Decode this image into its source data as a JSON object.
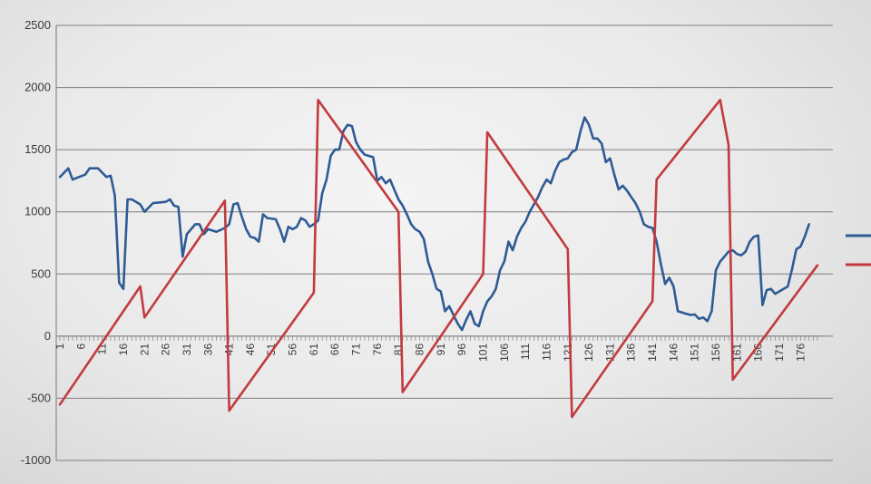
{
  "chart_data": {
    "type": "line",
    "title": "",
    "xlabel": "",
    "ylabel": "",
    "ylim": [
      -1000,
      2500
    ],
    "yticks": [
      "2500",
      "2000",
      "1500",
      "1000",
      "500",
      "0",
      "-500",
      "-1000"
    ],
    "ytick_values": [
      2500,
      2000,
      1500,
      1000,
      500,
      0,
      -500,
      -1000
    ],
    "xtick_labels": [
      "1",
      "6",
      "11",
      "16",
      "21",
      "26",
      "31",
      "36",
      "41",
      "46",
      "51",
      "56",
      "61",
      "66",
      "71",
      "76",
      "81",
      "86",
      "91",
      "96",
      "101",
      "106",
      "111",
      "116",
      "121",
      "126",
      "131",
      "136",
      "141",
      "146",
      "151",
      "156",
      "161",
      "166",
      "171",
      "176"
    ],
    "grid": true,
    "legend_position": "right",
    "x_start": 1,
    "x_end": 180,
    "series": [
      {
        "color": "#2e5b95",
        "points": [
          [
            1,
            1280
          ],
          [
            3,
            1350
          ],
          [
            4,
            1260
          ],
          [
            7,
            1300
          ],
          [
            8,
            1350
          ],
          [
            10,
            1350
          ],
          [
            12,
            1280
          ],
          [
            13,
            1290
          ],
          [
            14,
            1130
          ],
          [
            15,
            430
          ],
          [
            16,
            380
          ],
          [
            17,
            1100
          ],
          [
            18,
            1100
          ],
          [
            20,
            1060
          ],
          [
            21,
            1000
          ],
          [
            23,
            1070
          ],
          [
            26,
            1080
          ],
          [
            27,
            1100
          ],
          [
            28,
            1050
          ],
          [
            29,
            1040
          ],
          [
            30,
            640
          ],
          [
            31,
            820
          ],
          [
            33,
            900
          ],
          [
            34,
            900
          ],
          [
            35,
            820
          ],
          [
            36,
            860
          ],
          [
            38,
            840
          ],
          [
            40,
            870
          ],
          [
            41,
            900
          ],
          [
            42,
            1060
          ],
          [
            43,
            1070
          ],
          [
            44,
            960
          ],
          [
            45,
            860
          ],
          [
            46,
            800
          ],
          [
            47,
            790
          ],
          [
            48,
            760
          ],
          [
            49,
            980
          ],
          [
            50,
            950
          ],
          [
            52,
            940
          ],
          [
            53,
            860
          ],
          [
            54,
            760
          ],
          [
            55,
            880
          ],
          [
            56,
            860
          ],
          [
            57,
            880
          ],
          [
            58,
            950
          ],
          [
            59,
            930
          ],
          [
            60,
            880
          ],
          [
            61,
            900
          ],
          [
            62,
            930
          ],
          [
            63,
            1150
          ],
          [
            64,
            1260
          ],
          [
            65,
            1450
          ],
          [
            66,
            1500
          ],
          [
            67,
            1500
          ],
          [
            68,
            1650
          ],
          [
            69,
            1700
          ],
          [
            70,
            1690
          ],
          [
            71,
            1560
          ],
          [
            72,
            1500
          ],
          [
            73,
            1460
          ],
          [
            75,
            1440
          ],
          [
            76,
            1250
          ],
          [
            77,
            1280
          ],
          [
            78,
            1230
          ],
          [
            79,
            1260
          ],
          [
            80,
            1180
          ],
          [
            81,
            1100
          ],
          [
            82,
            1050
          ],
          [
            83,
            980
          ],
          [
            84,
            900
          ],
          [
            85,
            860
          ],
          [
            86,
            840
          ],
          [
            87,
            780
          ],
          [
            88,
            600
          ],
          [
            89,
            500
          ],
          [
            90,
            380
          ],
          [
            91,
            360
          ],
          [
            92,
            200
          ],
          [
            93,
            240
          ],
          [
            94,
            170
          ],
          [
            95,
            100
          ],
          [
            96,
            50
          ],
          [
            97,
            130
          ],
          [
            98,
            200
          ],
          [
            99,
            100
          ],
          [
            100,
            80
          ],
          [
            101,
            200
          ],
          [
            102,
            280
          ],
          [
            103,
            320
          ],
          [
            104,
            380
          ],
          [
            105,
            530
          ],
          [
            106,
            600
          ],
          [
            107,
            760
          ],
          [
            108,
            690
          ],
          [
            109,
            800
          ],
          [
            110,
            870
          ],
          [
            111,
            920
          ],
          [
            112,
            1000
          ],
          [
            113,
            1060
          ],
          [
            114,
            1120
          ],
          [
            115,
            1200
          ],
          [
            116,
            1260
          ],
          [
            117,
            1230
          ],
          [
            118,
            1330
          ],
          [
            119,
            1400
          ],
          [
            120,
            1420
          ],
          [
            121,
            1430
          ],
          [
            122,
            1480
          ],
          [
            123,
            1500
          ],
          [
            124,
            1650
          ],
          [
            125,
            1760
          ],
          [
            126,
            1700
          ],
          [
            127,
            1590
          ],
          [
            128,
            1590
          ],
          [
            129,
            1550
          ],
          [
            130,
            1400
          ],
          [
            131,
            1430
          ],
          [
            132,
            1300
          ],
          [
            133,
            1180
          ],
          [
            134,
            1210
          ],
          [
            135,
            1170
          ],
          [
            136,
            1120
          ],
          [
            137,
            1070
          ],
          [
            138,
            1000
          ],
          [
            139,
            900
          ],
          [
            140,
            880
          ],
          [
            141,
            870
          ],
          [
            142,
            760
          ],
          [
            143,
            580
          ],
          [
            144,
            420
          ],
          [
            145,
            470
          ],
          [
            146,
            400
          ],
          [
            147,
            200
          ],
          [
            148,
            190
          ],
          [
            149,
            180
          ],
          [
            150,
            170
          ],
          [
            151,
            175
          ],
          [
            152,
            140
          ],
          [
            153,
            150
          ],
          [
            154,
            120
          ],
          [
            155,
            200
          ],
          [
            156,
            530
          ],
          [
            157,
            600
          ],
          [
            158,
            640
          ],
          [
            159,
            680
          ],
          [
            160,
            690
          ],
          [
            161,
            660
          ],
          [
            162,
            650
          ],
          [
            163,
            680
          ],
          [
            164,
            760
          ],
          [
            165,
            800
          ],
          [
            166,
            810
          ],
          [
            167,
            250
          ],
          [
            168,
            370
          ],
          [
            169,
            380
          ],
          [
            170,
            340
          ],
          [
            171,
            360
          ],
          [
            172,
            380
          ],
          [
            173,
            400
          ],
          [
            174,
            540
          ],
          [
            175,
            700
          ],
          [
            176,
            720
          ],
          [
            177,
            800
          ],
          [
            178,
            900
          ]
        ]
      },
      {
        "color": "#c23a3f",
        "points": [
          [
            1,
            -550
          ],
          [
            20,
            400
          ],
          [
            21,
            150
          ],
          [
            40,
            1090
          ],
          [
            41,
            -600
          ],
          [
            61,
            350
          ],
          [
            62,
            1900
          ],
          [
            81,
            1000
          ],
          [
            82,
            -450
          ],
          [
            101,
            500
          ],
          [
            102,
            1640
          ],
          [
            121,
            700
          ],
          [
            122,
            -650
          ],
          [
            141,
            280
          ],
          [
            142,
            1260
          ],
          [
            157,
            1900
          ],
          [
            159,
            1540
          ],
          [
            160,
            -350
          ],
          [
            180,
            570
          ]
        ]
      }
    ]
  }
}
